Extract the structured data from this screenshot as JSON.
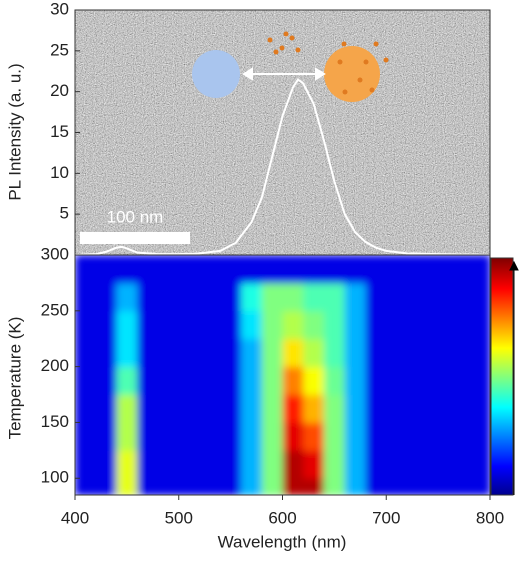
{
  "chart_data": [
    {
      "type": "line",
      "ylabel": "PL Intensity (a. u.)",
      "annotation": "100 nm",
      "x": [
        400,
        420,
        430,
        440,
        445,
        450,
        460,
        480,
        500,
        520,
        540,
        555,
        570,
        580,
        590,
        600,
        610,
        615,
        620,
        630,
        640,
        650,
        660,
        670,
        680,
        690,
        700,
        720,
        750,
        800
      ],
      "values": [
        0,
        0.1,
        0.4,
        0.9,
        1.0,
        0.8,
        0.3,
        0.1,
        0.1,
        0.2,
        0.5,
        1.5,
        4,
        7,
        12,
        17,
        20.5,
        21.5,
        21,
        18.5,
        14,
        9,
        5,
        2.8,
        1.6,
        0.9,
        0.5,
        0.2,
        0.1,
        0
      ],
      "color": "#ffffff",
      "xlim": [
        400,
        800
      ],
      "ylim": [
        0,
        30
      ],
      "yticks": [
        5,
        10,
        15,
        20,
        25,
        30
      ]
    },
    {
      "type": "heatmap",
      "xlabel": "Wavelength (nm)",
      "ylabel": "Temperature (K)",
      "colormap": "jet",
      "xbins": [
        400,
        420,
        440,
        460,
        480,
        500,
        520,
        540,
        560,
        580,
        600,
        620,
        640,
        660,
        680,
        700,
        720,
        740,
        760,
        780,
        800
      ],
      "ybins": [
        85,
        100,
        125,
        150,
        175,
        200,
        225,
        250,
        275,
        300
      ],
      "z": [
        [
          0.1,
          0.1,
          0.6,
          0.1,
          0.1,
          0.1,
          0.1,
          0.1,
          0.3,
          0.5,
          0.95,
          0.95,
          0.5,
          0.3,
          0.1,
          0.1,
          0.1,
          0.1,
          0.1,
          0.1
        ],
        [
          0.1,
          0.1,
          0.6,
          0.1,
          0.1,
          0.1,
          0.1,
          0.1,
          0.3,
          0.5,
          0.95,
          0.9,
          0.5,
          0.3,
          0.1,
          0.1,
          0.1,
          0.1,
          0.1,
          0.1
        ],
        [
          0.1,
          0.1,
          0.55,
          0.1,
          0.1,
          0.1,
          0.1,
          0.1,
          0.3,
          0.5,
          0.9,
          0.8,
          0.5,
          0.3,
          0.1,
          0.1,
          0.1,
          0.1,
          0.1,
          0.1
        ],
        [
          0.1,
          0.1,
          0.55,
          0.1,
          0.1,
          0.1,
          0.1,
          0.1,
          0.3,
          0.5,
          0.85,
          0.7,
          0.5,
          0.3,
          0.1,
          0.1,
          0.1,
          0.1,
          0.1,
          0.1
        ],
        [
          0.1,
          0.1,
          0.45,
          0.1,
          0.1,
          0.1,
          0.1,
          0.1,
          0.3,
          0.5,
          0.75,
          0.62,
          0.48,
          0.3,
          0.1,
          0.1,
          0.1,
          0.1,
          0.1,
          0.1
        ],
        [
          0.1,
          0.1,
          0.35,
          0.1,
          0.1,
          0.1,
          0.1,
          0.1,
          0.3,
          0.5,
          0.65,
          0.55,
          0.45,
          0.3,
          0.1,
          0.1,
          0.1,
          0.1,
          0.1,
          0.1
        ],
        [
          0.1,
          0.1,
          0.35,
          0.1,
          0.1,
          0.1,
          0.1,
          0.1,
          0.35,
          0.5,
          0.55,
          0.5,
          0.45,
          0.3,
          0.1,
          0.1,
          0.1,
          0.1,
          0.1,
          0.1
        ],
        [
          0.1,
          0.1,
          0.3,
          0.1,
          0.1,
          0.1,
          0.1,
          0.1,
          0.4,
          0.5,
          0.5,
          0.45,
          0.45,
          0.3,
          0.1,
          0.1,
          0.1,
          0.1,
          0.1,
          0.1
        ],
        [
          0.1,
          0.1,
          0.1,
          0.1,
          0.1,
          0.1,
          0.1,
          0.1,
          0.1,
          0.1,
          0.1,
          0.1,
          0.1,
          0.1,
          0.1,
          0.1,
          0.1,
          0.1,
          0.1,
          0.1
        ]
      ],
      "xlim": [
        400,
        800
      ],
      "ylim": [
        85,
        300
      ],
      "xticks": [
        400,
        500,
        600,
        700,
        800
      ],
      "yticks": [
        100,
        150,
        200,
        250,
        300
      ]
    }
  ]
}
